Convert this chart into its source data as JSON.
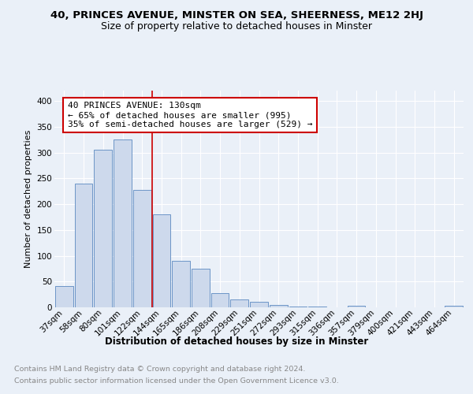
{
  "title": "40, PRINCES AVENUE, MINSTER ON SEA, SHEERNESS, ME12 2HJ",
  "subtitle": "Size of property relative to detached houses in Minster",
  "xlabel": "Distribution of detached houses by size in Minster",
  "ylabel": "Number of detached properties",
  "categories": [
    "37sqm",
    "58sqm",
    "80sqm",
    "101sqm",
    "122sqm",
    "144sqm",
    "165sqm",
    "186sqm",
    "208sqm",
    "229sqm",
    "251sqm",
    "272sqm",
    "293sqm",
    "315sqm",
    "336sqm",
    "357sqm",
    "379sqm",
    "400sqm",
    "421sqm",
    "443sqm",
    "464sqm"
  ],
  "values": [
    42,
    240,
    305,
    325,
    228,
    180,
    90,
    75,
    27,
    16,
    10,
    4,
    2,
    1,
    0,
    3,
    0,
    0,
    0,
    0,
    3
  ],
  "bar_color": "#cdd9ec",
  "bar_edge_color": "#5b88c0",
  "annotation_text": "40 PRINCES AVENUE: 130sqm\n← 65% of detached houses are smaller (995)\n35% of semi-detached houses are larger (529) →",
  "annotation_box_color": "#ffffff",
  "annotation_box_edge_color": "#cc0000",
  "vline_color": "#cc0000",
  "vline_x": 4.5,
  "ylim": [
    0,
    420
  ],
  "yticks": [
    0,
    50,
    100,
    150,
    200,
    250,
    300,
    350,
    400
  ],
  "footnote1": "Contains HM Land Registry data © Crown copyright and database right 2024.",
  "footnote2": "Contains public sector information licensed under the Open Government Licence v3.0.",
  "background_color": "#eaf0f8",
  "grid_color": "#ffffff",
  "title_fontsize": 9.5,
  "subtitle_fontsize": 9,
  "xlabel_fontsize": 8.5,
  "ylabel_fontsize": 8,
  "tick_fontsize": 7.5,
  "annotation_fontsize": 8,
  "footnote_fontsize": 6.8
}
